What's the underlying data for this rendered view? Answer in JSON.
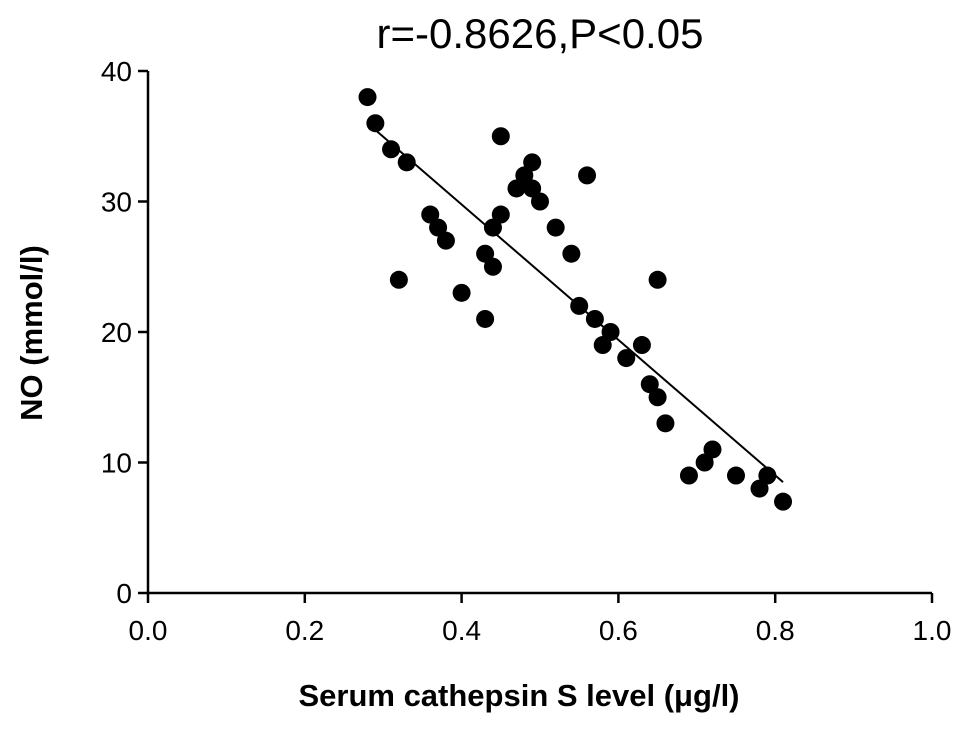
{
  "chart_data": {
    "type": "scatter",
    "title": "r=-0.8626,P<0.05",
    "xlabel": "Serum cathepsin S level (μg/l)",
    "ylabel": "NO (mmol/l)",
    "xlim": [
      0.0,
      1.0
    ],
    "ylim": [
      0,
      40
    ],
    "x_ticks": [
      "0.0",
      "0.2",
      "0.4",
      "0.6",
      "0.8",
      "1.0"
    ],
    "y_ticks": [
      "0",
      "10",
      "20",
      "30",
      "40"
    ],
    "grid": false,
    "marker_color": "#000000",
    "series": [
      {
        "points": [
          {
            "x": 0.28,
            "y": 38
          },
          {
            "x": 0.29,
            "y": 36
          },
          {
            "x": 0.31,
            "y": 34
          },
          {
            "x": 0.33,
            "y": 33
          },
          {
            "x": 0.32,
            "y": 24
          },
          {
            "x": 0.36,
            "y": 29
          },
          {
            "x": 0.37,
            "y": 28
          },
          {
            "x": 0.38,
            "y": 27
          },
          {
            "x": 0.4,
            "y": 23
          },
          {
            "x": 0.43,
            "y": 26
          },
          {
            "x": 0.43,
            "y": 21
          },
          {
            "x": 0.44,
            "y": 25
          },
          {
            "x": 0.44,
            "y": 28
          },
          {
            "x": 0.45,
            "y": 29
          },
          {
            "x": 0.45,
            "y": 35
          },
          {
            "x": 0.47,
            "y": 31
          },
          {
            "x": 0.48,
            "y": 32
          },
          {
            "x": 0.49,
            "y": 33
          },
          {
            "x": 0.49,
            "y": 31
          },
          {
            "x": 0.5,
            "y": 30
          },
          {
            "x": 0.52,
            "y": 28
          },
          {
            "x": 0.54,
            "y": 26
          },
          {
            "x": 0.55,
            "y": 22
          },
          {
            "x": 0.56,
            "y": 32
          },
          {
            "x": 0.57,
            "y": 21
          },
          {
            "x": 0.58,
            "y": 19
          },
          {
            "x": 0.59,
            "y": 20
          },
          {
            "x": 0.61,
            "y": 18
          },
          {
            "x": 0.63,
            "y": 19
          },
          {
            "x": 0.64,
            "y": 16
          },
          {
            "x": 0.65,
            "y": 15
          },
          {
            "x": 0.65,
            "y": 24
          },
          {
            "x": 0.66,
            "y": 13
          },
          {
            "x": 0.69,
            "y": 9
          },
          {
            "x": 0.71,
            "y": 10
          },
          {
            "x": 0.72,
            "y": 11
          },
          {
            "x": 0.75,
            "y": 9
          },
          {
            "x": 0.78,
            "y": 8
          },
          {
            "x": 0.79,
            "y": 9
          },
          {
            "x": 0.81,
            "y": 7
          }
        ]
      }
    ],
    "trend_line": {
      "x": [
        0.28,
        0.81
      ],
      "y": [
        36.0,
        8.5
      ]
    }
  }
}
